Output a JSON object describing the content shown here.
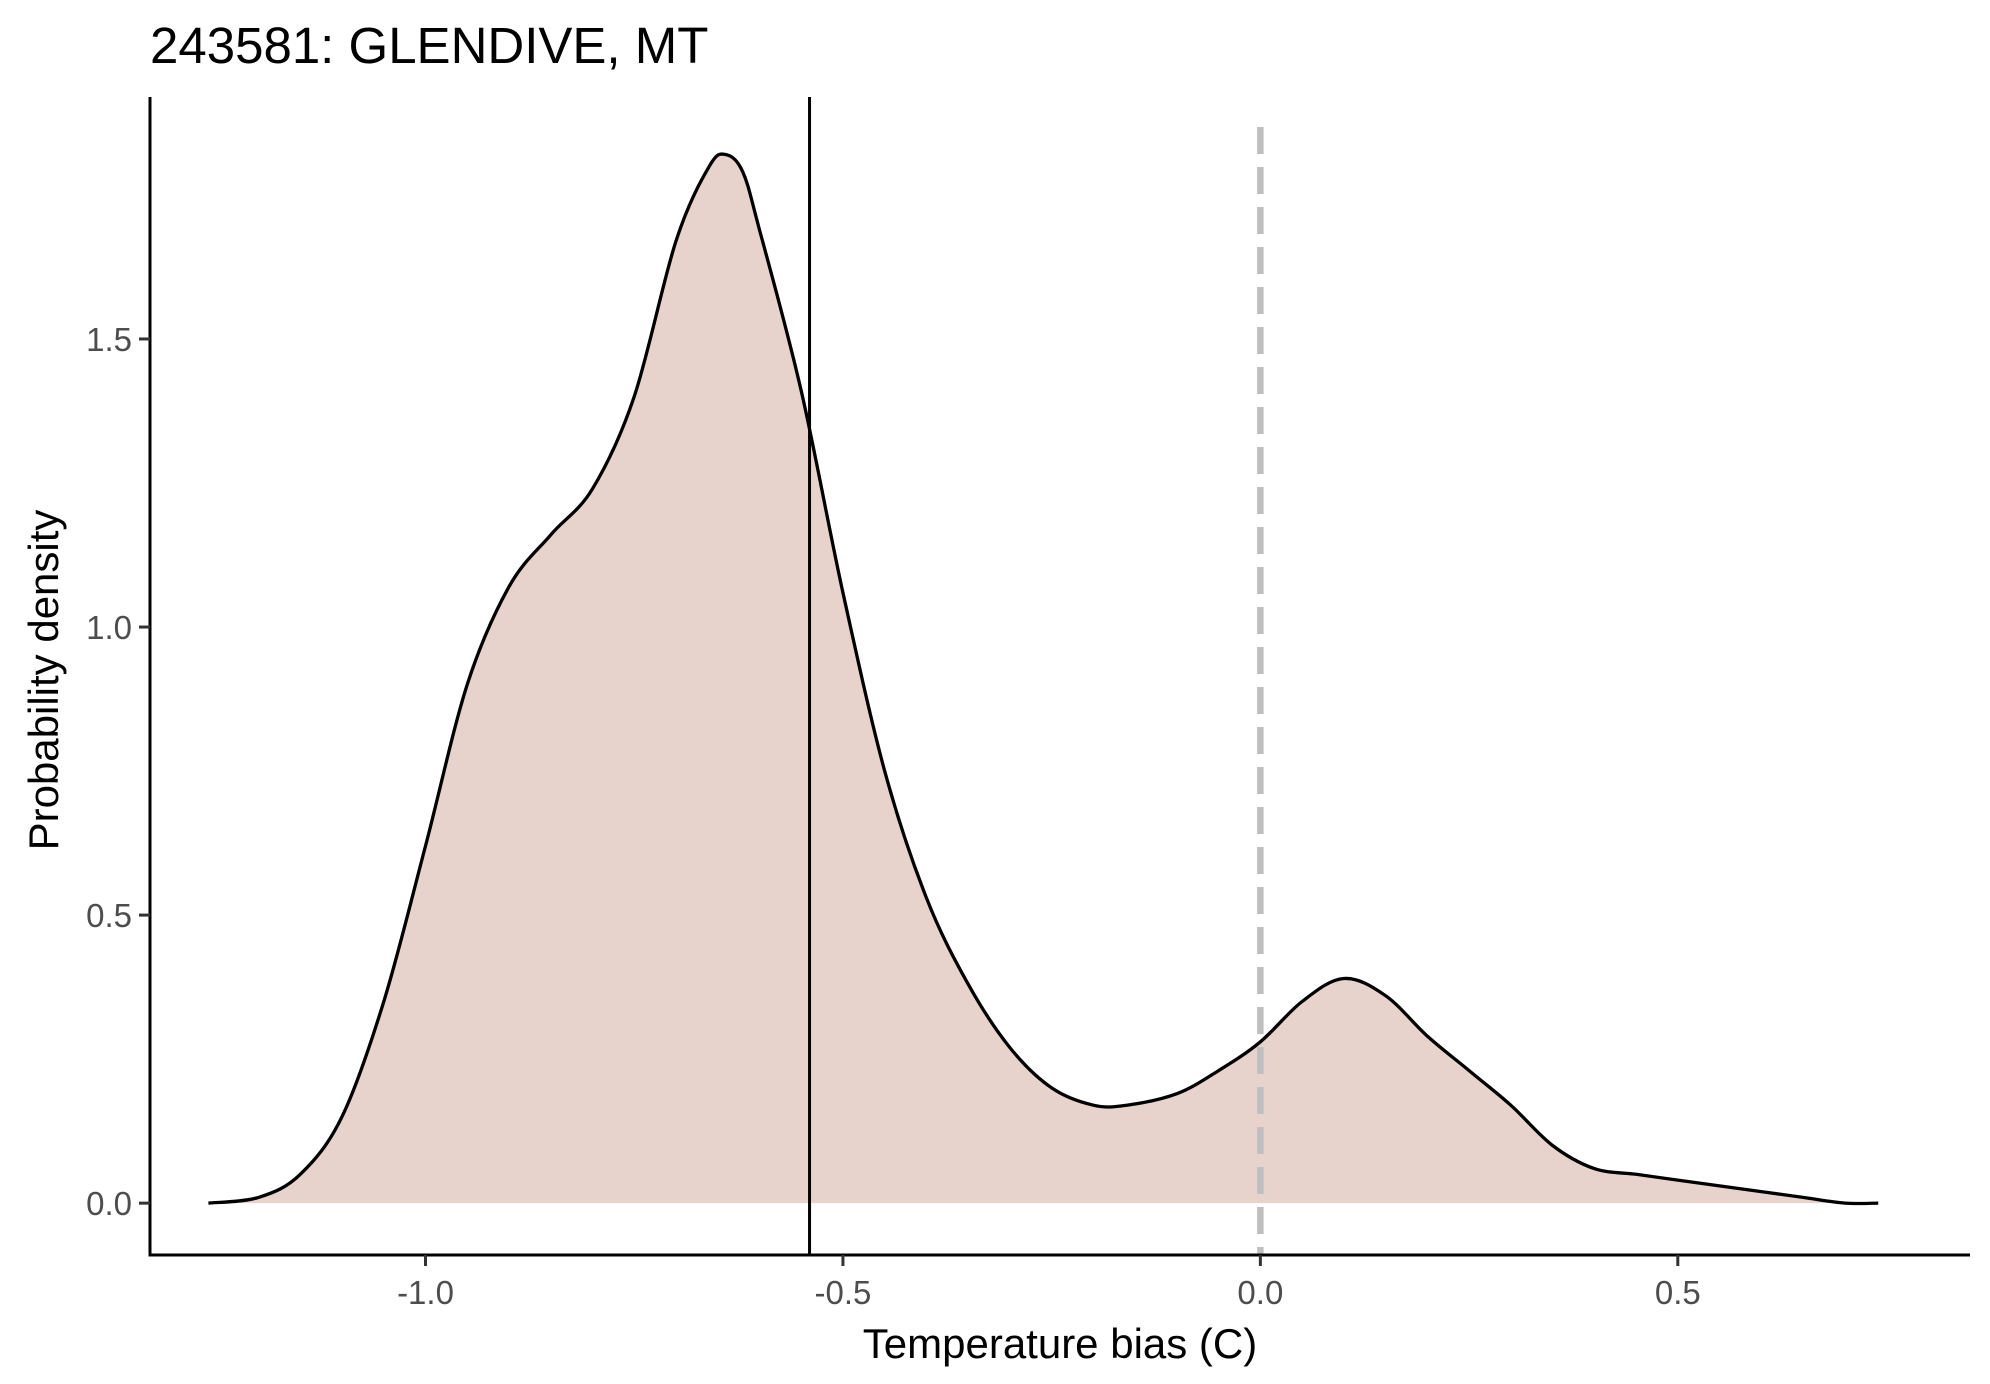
{
  "chart_data": {
    "type": "area",
    "title": "243581: GLENDIVE, MT",
    "xlabel": "Temperature bias (C)",
    "ylabel": "Probability density",
    "xlim": [
      -1.33,
      0.85
    ],
    "ylim": [
      -0.09,
      1.92
    ],
    "x_ticks": [
      -1.0,
      -0.5,
      0.0,
      0.5
    ],
    "x_tick_labels": [
      "-1.0",
      "-0.5",
      "0.0",
      "0.5"
    ],
    "y_ticks": [
      0.0,
      0.5,
      1.0,
      1.5
    ],
    "y_tick_labels": [
      "0.0",
      "0.5",
      "1.0",
      "1.5"
    ],
    "grid": false,
    "fill_color": "#e8d2cc",
    "line_color": "#000000",
    "mean_line_x": -0.54,
    "zero_line_x": 0.0,
    "zero_line_color": "#bfbfbf",
    "series": [
      {
        "x": [
          -1.26,
          -1.2,
          -1.15,
          -1.1,
          -1.05,
          -1.0,
          -0.95,
          -0.9,
          -0.85,
          -0.8,
          -0.75,
          -0.7,
          -0.66,
          -0.64,
          -0.62,
          -0.6,
          -0.55,
          -0.5,
          -0.45,
          -0.4,
          -0.35,
          -0.3,
          -0.25,
          -0.2,
          -0.16,
          -0.1,
          -0.05,
          0.0,
          0.05,
          0.1,
          0.15,
          0.2,
          0.25,
          0.3,
          0.35,
          0.4,
          0.45,
          0.5,
          0.55,
          0.6,
          0.65,
          0.7,
          0.74
        ],
        "y": [
          0.0,
          0.01,
          0.05,
          0.15,
          0.35,
          0.62,
          0.9,
          1.07,
          1.16,
          1.24,
          1.4,
          1.67,
          1.8,
          1.82,
          1.79,
          1.69,
          1.41,
          1.06,
          0.75,
          0.53,
          0.38,
          0.27,
          0.2,
          0.17,
          0.17,
          0.19,
          0.23,
          0.28,
          0.35,
          0.39,
          0.36,
          0.29,
          0.23,
          0.17,
          0.1,
          0.06,
          0.05,
          0.04,
          0.03,
          0.02,
          0.01,
          0.0,
          0.0
        ]
      }
    ]
  }
}
